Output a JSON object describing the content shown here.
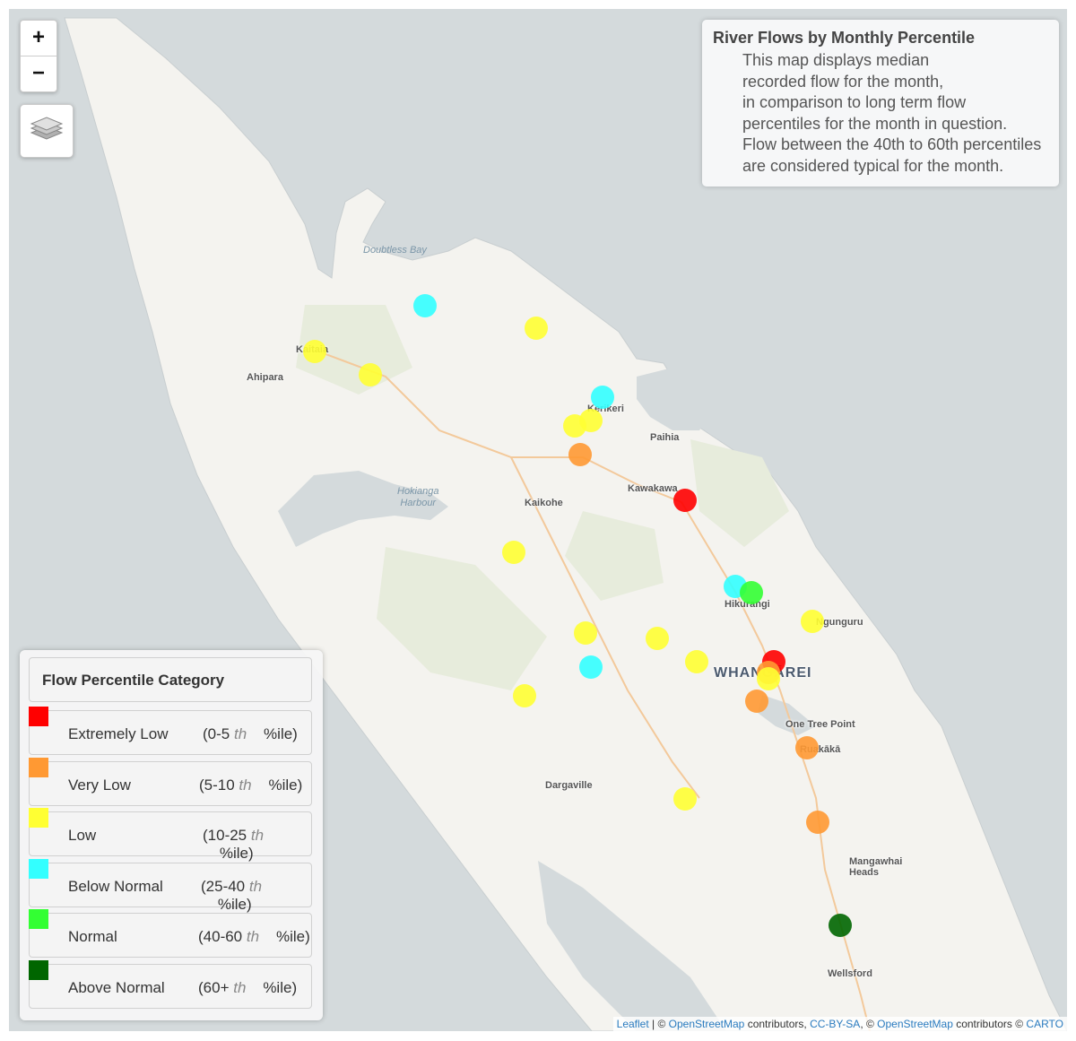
{
  "map": {
    "places": [
      {
        "name": "Doubtless Bay",
        "type": "water"
      },
      {
        "name": "Kaitaia",
        "type": "town"
      },
      {
        "name": "Ahipara",
        "type": "town"
      },
      {
        "name": "Kerikeri",
        "type": "town"
      },
      {
        "name": "Paihia",
        "type": "town"
      },
      {
        "name": "Hokianga\nHarbour",
        "type": "water"
      },
      {
        "name": "Kaikohe",
        "type": "town"
      },
      {
        "name": "Kawakawa",
        "type": "town"
      },
      {
        "name": "Hikurangi",
        "type": "town"
      },
      {
        "name": "Ngunguru",
        "type": "town"
      },
      {
        "name": "WHANGĀREI",
        "type": "city"
      },
      {
        "name": "One Tree Point",
        "type": "town"
      },
      {
        "name": "Ruakākā",
        "type": "town"
      },
      {
        "name": "Dargaville",
        "type": "town"
      },
      {
        "name": "Mangawhai\nHeads",
        "type": "town"
      },
      {
        "name": "Wellsford",
        "type": "town"
      }
    ],
    "gauges": [
      {
        "lon": 173.26,
        "lat": -35.11,
        "category": "Low"
      },
      {
        "lon": 173.46,
        "lat": -35.03,
        "category": "Below Normal"
      },
      {
        "lon": 173.36,
        "lat": -35.15,
        "category": "Low"
      },
      {
        "lon": 173.66,
        "lat": -35.07,
        "category": "Low"
      },
      {
        "lon": 173.78,
        "lat": -35.19,
        "category": "Below Normal"
      },
      {
        "lon": 173.76,
        "lat": -35.23,
        "category": "Low"
      },
      {
        "lon": 173.73,
        "lat": -35.24,
        "category": "Low"
      },
      {
        "lon": 173.74,
        "lat": -35.29,
        "category": "Very Low"
      },
      {
        "lon": 173.93,
        "lat": -35.37,
        "category": "Extremely Low"
      },
      {
        "lon": 173.62,
        "lat": -35.46,
        "category": "Low"
      },
      {
        "lon": 174.02,
        "lat": -35.52,
        "category": "Below Normal"
      },
      {
        "lon": 174.05,
        "lat": -35.53,
        "category": "Normal"
      },
      {
        "lon": 174.16,
        "lat": -35.58,
        "category": "Low"
      },
      {
        "lon": 173.75,
        "lat": -35.6,
        "category": "Low"
      },
      {
        "lon": 173.88,
        "lat": -35.61,
        "category": "Low"
      },
      {
        "lon": 173.76,
        "lat": -35.66,
        "category": "Below Normal"
      },
      {
        "lon": 173.95,
        "lat": -35.65,
        "category": "Low"
      },
      {
        "lon": 174.09,
        "lat": -35.65,
        "category": "Extremely Low"
      },
      {
        "lon": 174.08,
        "lat": -35.67,
        "category": "Very Low"
      },
      {
        "lon": 174.08,
        "lat": -35.68,
        "category": "Low"
      },
      {
        "lon": 173.64,
        "lat": -35.71,
        "category": "Low"
      },
      {
        "lon": 174.06,
        "lat": -35.72,
        "category": "Very Low"
      },
      {
        "lon": 174.15,
        "lat": -35.8,
        "category": "Very Low"
      },
      {
        "lon": 173.93,
        "lat": -35.89,
        "category": "Low"
      },
      {
        "lon": 174.17,
        "lat": -35.93,
        "category": "Very Low"
      },
      {
        "lon": 174.21,
        "lat": -36.11,
        "category": "Above Normal"
      }
    ],
    "colors": {
      "land": "#f4f3ef",
      "sea": "#d4dadc",
      "park": "#e7ecdc",
      "road": "#f3c99b"
    }
  },
  "controls": {
    "zoom_in": "+",
    "zoom_out": "−",
    "layers_icon": "layers-icon"
  },
  "info": {
    "title": "River Flows by Monthly Percentile",
    "lines": [
      "This map displays median",
      "recorded flow for the month,",
      "in comparison to long term flow",
      "percentiles for the month in question.",
      "Flow between the 40th to 60th percentiles",
      "are considered typical for the month."
    ]
  },
  "legend": {
    "title": "Flow Percentile Category",
    "items": [
      {
        "label": "Extremely Low",
        "range_open": "(0-5",
        "range_th": "th",
        "range_close": "%ile)",
        "color": "#ff0000"
      },
      {
        "label": "Very Low",
        "range_open": "(5-10",
        "range_th": "th",
        "range_close": "%ile)",
        "color": "#ff9933"
      },
      {
        "label": "Low",
        "range_open": "(10-25",
        "range_th": "th",
        "range_close": "%ile)",
        "color": "#ffff33"
      },
      {
        "label": "Below Normal",
        "range_open": "(25-40",
        "range_th": "th",
        "range_close": "%ile)",
        "color": "#33ffff"
      },
      {
        "label": "Normal",
        "range_open": "(40-60",
        "range_th": "th",
        "range_close": "%ile)",
        "color": "#33ff33"
      },
      {
        "label": "Above Normal",
        "range_open": "(60+",
        "range_th": "th",
        "range_close": "%ile)",
        "color": "#006600"
      }
    ]
  },
  "attribution": {
    "leaflet": "Leaflet",
    "sep1": " | © ",
    "osm1": "OpenStreetMap",
    "contrib1": " contributors, ",
    "license": "CC-BY-SA",
    "sep2": ", © ",
    "osm2": "OpenStreetMap",
    "contrib2": " contributors © ",
    "carto": "CARTO"
  }
}
